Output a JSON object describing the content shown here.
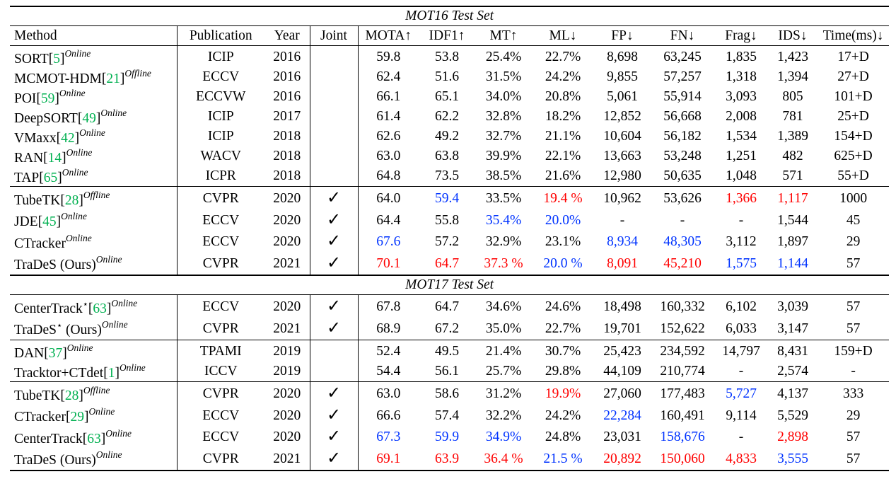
{
  "headers": [
    "Method",
    "Publication",
    "Year",
    "Joint",
    "MOTA↑",
    "IDF1↑",
    "MT↑",
    "ML↓",
    "FP↓",
    "FN↓",
    "Frag↓",
    "IDS↓",
    "Time(ms)↓"
  ],
  "sections": [
    {
      "title": "MOT16 Test Set",
      "groups": [
        [
          {
            "name": "SORT",
            "cite": "5",
            "type": "Online",
            "pub": "ICIP",
            "year": "2016",
            "joint": false,
            "vals": [
              "59.8",
              "53.8",
              "25.4%",
              "22.7%",
              "8,698",
              "63,245",
              "1,835",
              "1,423",
              "17+D"
            ]
          },
          {
            "name": "MCMOT-HDM",
            "cite": "21",
            "type": "Offline",
            "pub": "ECCV",
            "year": "2016",
            "joint": false,
            "vals": [
              "62.4",
              "51.6",
              "31.5%",
              "24.2%",
              "9,855",
              "57,257",
              "1,318",
              "1,394",
              "27+D"
            ]
          },
          {
            "name": "POI",
            "cite": "59",
            "type": "Online",
            "pub": "ECCVW",
            "year": "2016",
            "joint": false,
            "vals": [
              "66.1",
              "65.1",
              "34.0%",
              "20.8%",
              "5,061",
              "55,914",
              "3,093",
              "805",
              "101+D"
            ]
          },
          {
            "name": "DeepSORT",
            "cite": "49",
            "type": "Online",
            "pub": "ICIP",
            "year": "2017",
            "joint": false,
            "vals": [
              "61.4",
              "62.2",
              "32.8%",
              "18.2%",
              "12,852",
              "56,668",
              "2,008",
              "781",
              "25+D"
            ]
          },
          {
            "name": "VMaxx",
            "cite": "42",
            "type": "Online",
            "pub": "ICIP",
            "year": "2018",
            "joint": false,
            "vals": [
              "62.6",
              "49.2",
              "32.7%",
              "21.1%",
              "10,604",
              "56,182",
              "1,534",
              "1,389",
              "154+D"
            ]
          },
          {
            "name": "RAN",
            "cite": "14",
            "type": "Online",
            "pub": "WACV",
            "year": "2018",
            "joint": false,
            "vals": [
              "63.0",
              "63.8",
              "39.9%",
              "22.1%",
              "13,663",
              "53,248",
              "1,251",
              "482",
              "625+D"
            ]
          },
          {
            "name": "TAP",
            "cite": "65",
            "type": "Online",
            "pub": "ICPR",
            "year": "2018",
            "joint": false,
            "vals": [
              "64.8",
              "73.5",
              "38.5%",
              "21.6%",
              "12,980",
              "50,635",
              "1,048",
              "571",
              "55+D"
            ]
          }
        ],
        [
          {
            "name": "TubeTK",
            "cite": "28",
            "type": "Offline",
            "pub": "CVPR",
            "year": "2020",
            "joint": true,
            "vals": [
              "64.0",
              "59.4",
              "33.5%",
              "19.4 %",
              "10,962",
              "53,626",
              "1,366",
              "1,117",
              "1000"
            ],
            "colors": [
              "",
              "blue",
              "",
              "red",
              "",
              "",
              "red",
              "red",
              ""
            ]
          },
          {
            "name": "JDE",
            "cite": "45",
            "type": "Online",
            "pub": "ECCV",
            "year": "2020",
            "joint": true,
            "vals": [
              "64.4",
              "55.8",
              "35.4%",
              "20.0%",
              "-",
              "-",
              "-",
              "1,544",
              "45"
            ],
            "colors": [
              "",
              "",
              "blue",
              "blue",
              "",
              "",
              "",
              "",
              ""
            ]
          },
          {
            "name": "CTracker",
            "cite": "",
            "type": "Online",
            "pub": "ECCV",
            "year": "2020",
            "joint": true,
            "vals": [
              "67.6",
              "57.2",
              "32.9%",
              "23.1%",
              "8,934",
              "48,305",
              "3,112",
              "1,897",
              "29"
            ],
            "colors": [
              "blue",
              "",
              "",
              "",
              "blue",
              "blue",
              "",
              "",
              ""
            ]
          },
          {
            "name": "TraDeS (Ours)",
            "cite": "",
            "type": "Online",
            "pub": "CVPR",
            "year": "2021",
            "joint": true,
            "vals": [
              "70.1",
              "64.7",
              "37.3 %",
              "20.0 %",
              "8,091",
              "45,210",
              "1,575",
              "1,144",
              "57"
            ],
            "colors": [
              "red",
              "red",
              "red",
              "blue",
              "red",
              "red",
              "blue",
              "blue",
              ""
            ]
          }
        ]
      ]
    },
    {
      "title": "MOT17 Test Set",
      "groups": [
        [
          {
            "name": "CenterTrack",
            "star": true,
            "cite": "63",
            "type": "Online",
            "pub": "ECCV",
            "year": "2020",
            "joint": true,
            "vals": [
              "67.8",
              "64.7",
              "34.6%",
              "24.6%",
              "18,498",
              "160,332",
              "6,102",
              "3,039",
              "57"
            ]
          },
          {
            "name": "TraDeS",
            "star": true,
            "suffix": " (Ours)",
            "cite": "",
            "type": "Online",
            "pub": "CVPR",
            "year": "2021",
            "joint": true,
            "vals": [
              "68.9",
              "67.2",
              "35.0%",
              "22.7%",
              "19,701",
              "152,622",
              "6,033",
              "3,147",
              "57"
            ]
          }
        ],
        [
          {
            "name": "DAN",
            "cite": "37",
            "type": "Online",
            "pub": "TPAMI",
            "year": "2019",
            "joint": false,
            "vals": [
              "52.4",
              "49.5",
              "21.4%",
              "30.7%",
              "25,423",
              "234,592",
              "14,797",
              "8,431",
              "159+D"
            ]
          },
          {
            "name": "Tracktor+CTdet",
            "cite": "1",
            "type": "Online",
            "pub": "ICCV",
            "year": "2019",
            "joint": false,
            "vals": [
              "54.4",
              "56.1",
              "25.7%",
              "29.8%",
              "44,109",
              "210,774",
              "-",
              "2,574",
              "-"
            ]
          }
        ],
        [
          {
            "name": "TubeTK",
            "cite": "28",
            "type": "Offline",
            "pub": "CVPR",
            "year": "2020",
            "joint": true,
            "vals": [
              "63.0",
              "58.6",
              "31.2%",
              "19.9%",
              "27,060",
              "177,483",
              "5,727",
              "4,137",
              "333"
            ],
            "colors": [
              "",
              "",
              "",
              "red",
              "",
              "",
              "blue",
              "",
              ""
            ]
          },
          {
            "name": "CTracker",
            "cite": "29",
            "type": "Online",
            "pub": "ECCV",
            "year": "2020",
            "joint": true,
            "vals": [
              "66.6",
              "57.4",
              "32.2%",
              "24.2%",
              "22,284",
              "160,491",
              "9,114",
              "5,529",
              "29"
            ],
            "colors": [
              "",
              "",
              "",
              "",
              "blue",
              "",
              "",
              "",
              ""
            ]
          },
          {
            "name": "CenterTrack",
            "cite": "63",
            "type": "Online",
            "pub": "ECCV",
            "year": "2020",
            "joint": true,
            "vals": [
              "67.3",
              "59.9",
              "34.9%",
              "24.8%",
              "23,031",
              "158,676",
              "-",
              "2,898",
              "57"
            ],
            "colors": [
              "blue",
              "blue",
              "blue",
              "",
              "",
              "blue",
              "",
              "red",
              ""
            ]
          },
          {
            "name": "TraDeS (Ours)",
            "cite": "",
            "type": "Online",
            "pub": "CVPR",
            "year": "2021",
            "joint": true,
            "vals": [
              "69.1",
              "63.9",
              "36.4 %",
              "21.5 %",
              "20,892",
              "150,060",
              "4,833",
              "3,555",
              "57"
            ],
            "colors": [
              "red",
              "red",
              "red",
              "blue",
              "red",
              "red",
              "red",
              "blue",
              ""
            ]
          }
        ]
      ]
    }
  ],
  "check_glyph": "✓",
  "star_glyph": "⋆"
}
